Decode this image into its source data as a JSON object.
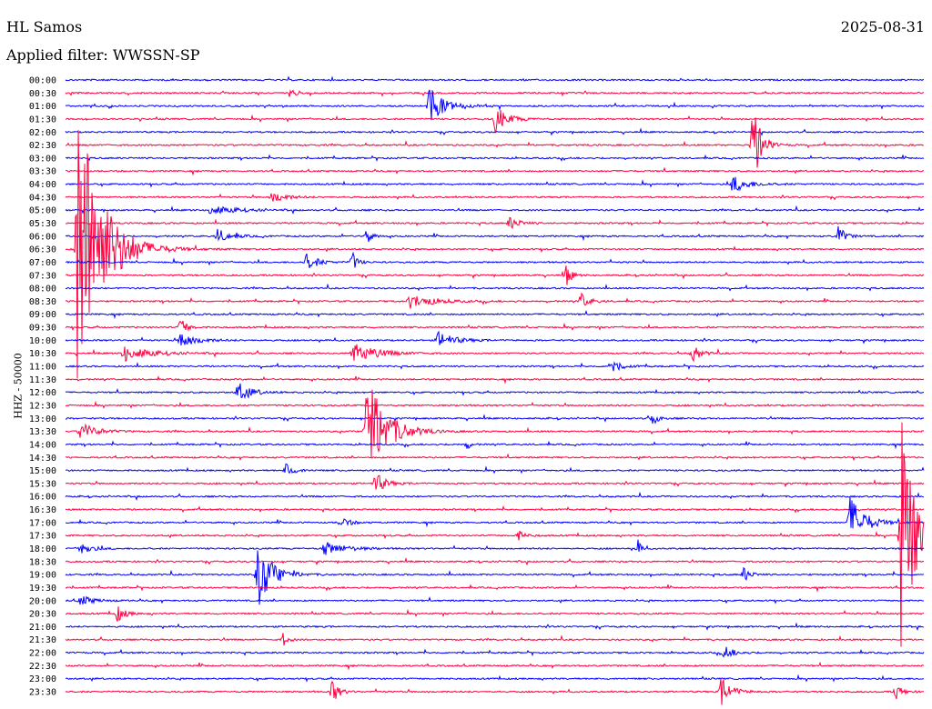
{
  "header": {
    "station": "HL Samos",
    "date": "2025-08-31",
    "filter": "Applied filter: WWSSN-SP"
  },
  "chart_data": {
    "type": "line",
    "title": "HL Samos",
    "subtitle": "Applied filter: WWSSN-SP",
    "ylabel": "HHZ - 50000",
    "xlabel": "",
    "minutes_per_line": 30,
    "colors": [
      "#0000ff",
      "#ff0040"
    ],
    "tick_labels": [
      "00:00",
      "00:30",
      "01:00",
      "01:30",
      "02:00",
      "02:30",
      "03:00",
      "03:30",
      "04:00",
      "04:30",
      "05:00",
      "05:30",
      "06:00",
      "06:30",
      "07:00",
      "07:30",
      "08:00",
      "08:30",
      "09:00",
      "09:30",
      "10:00",
      "10:30",
      "11:00",
      "11:30",
      "12:00",
      "12:30",
      "13:00",
      "13:30",
      "14:00",
      "14:30",
      "15:00",
      "15:30",
      "16:00",
      "16:30",
      "17:00",
      "17:30",
      "18:00",
      "18:30",
      "19:00",
      "19:30",
      "20:00",
      "20:30",
      "21:00",
      "21:30",
      "22:00",
      "22:30",
      "23:00",
      "23:30"
    ],
    "events": [
      {
        "line": "06:30",
        "minute": 0.4,
        "amp": 190,
        "dur": 1.5
      },
      {
        "line": "00:30",
        "minute": 7.8,
        "amp": 5,
        "dur": 0.4
      },
      {
        "line": "01:00",
        "minute": 12.7,
        "amp": 22,
        "dur": 0.9
      },
      {
        "line": "01:30",
        "minute": 15.0,
        "amp": 16,
        "dur": 0.8
      },
      {
        "line": "02:30",
        "minute": 24.0,
        "amp": 55,
        "dur": 0.5
      },
      {
        "line": "04:00",
        "minute": 23.3,
        "amp": 10,
        "dur": 1.0
      },
      {
        "line": "04:30",
        "minute": 7.2,
        "amp": 8,
        "dur": 0.8
      },
      {
        "line": "05:00",
        "minute": 5.0,
        "amp": 6,
        "dur": 1.5
      },
      {
        "line": "05:30",
        "minute": 15.5,
        "amp": 8,
        "dur": 0.6
      },
      {
        "line": "06:00",
        "minute": 5.3,
        "amp": 8,
        "dur": 0.8
      },
      {
        "line": "06:00",
        "minute": 10.5,
        "amp": 12,
        "dur": 0.3
      },
      {
        "line": "06:00",
        "minute": 27.0,
        "amp": 14,
        "dur": 0.4
      },
      {
        "line": "07:00",
        "minute": 8.4,
        "amp": 10,
        "dur": 0.7
      },
      {
        "line": "07:00",
        "minute": 10.0,
        "amp": 14,
        "dur": 0.3
      },
      {
        "line": "07:30",
        "minute": 17.5,
        "amp": 14,
        "dur": 0.3
      },
      {
        "line": "08:30",
        "minute": 12.0,
        "amp": 8,
        "dur": 1.5
      },
      {
        "line": "08:30",
        "minute": 18.0,
        "amp": 10,
        "dur": 0.5
      },
      {
        "line": "09:30",
        "minute": 4.0,
        "amp": 12,
        "dur": 0.4
      },
      {
        "line": "10:00",
        "minute": 4.0,
        "amp": 10,
        "dur": 1.0
      },
      {
        "line": "10:00",
        "minute": 13.0,
        "amp": 10,
        "dur": 1.0
      },
      {
        "line": "10:30",
        "minute": 2.0,
        "amp": 10,
        "dur": 1.5
      },
      {
        "line": "10:30",
        "minute": 10.0,
        "amp": 12,
        "dur": 1.5
      },
      {
        "line": "10:30",
        "minute": 21.9,
        "amp": 10,
        "dur": 0.5
      },
      {
        "line": "11:00",
        "minute": 19.0,
        "amp": 9,
        "dur": 0.6
      },
      {
        "line": "12:00",
        "minute": 6.0,
        "amp": 12,
        "dur": 0.8
      },
      {
        "line": "13:30",
        "minute": 10.5,
        "amp": 70,
        "dur": 1.2
      },
      {
        "line": "13:30",
        "minute": 0.5,
        "amp": 10,
        "dur": 1.0
      },
      {
        "line": "13:00",
        "minute": 20.5,
        "amp": 8,
        "dur": 0.4
      },
      {
        "line": "14:00",
        "minute": 14.0,
        "amp": 10,
        "dur": 0.2
      },
      {
        "line": "15:00",
        "minute": 7.7,
        "amp": 10,
        "dur": 0.5
      },
      {
        "line": "15:30",
        "minute": 10.8,
        "amp": 14,
        "dur": 0.6
      },
      {
        "line": "17:00",
        "minute": 27.4,
        "amp": 32,
        "dur": 0.9
      },
      {
        "line": "17:00",
        "minute": 9.6,
        "amp": 8,
        "dur": 0.5
      },
      {
        "line": "17:30",
        "minute": 29.2,
        "amp": 150,
        "dur": 0.8
      },
      {
        "line": "17:30",
        "minute": 15.8,
        "amp": 6,
        "dur": 0.5
      },
      {
        "line": "18:00",
        "minute": 0.5,
        "amp": 9,
        "dur": 0.6
      },
      {
        "line": "18:00",
        "minute": 9.0,
        "amp": 8,
        "dur": 1.3
      },
      {
        "line": "18:00",
        "minute": 20.0,
        "amp": 10,
        "dur": 0.2
      },
      {
        "line": "19:00",
        "minute": 6.7,
        "amp": 42,
        "dur": 0.9
      },
      {
        "line": "19:00",
        "minute": 23.7,
        "amp": 9,
        "dur": 0.4
      },
      {
        "line": "20:00",
        "minute": 0.5,
        "amp": 6,
        "dur": 0.8
      },
      {
        "line": "20:30",
        "minute": 1.8,
        "amp": 9,
        "dur": 0.5
      },
      {
        "line": "21:30",
        "minute": 7.6,
        "amp": 8,
        "dur": 0.3
      },
      {
        "line": "22:00",
        "minute": 23.0,
        "amp": 8,
        "dur": 0.6
      },
      {
        "line": "23:30",
        "minute": 9.3,
        "amp": 16,
        "dur": 0.4
      },
      {
        "line": "23:30",
        "minute": 22.9,
        "amp": 16,
        "dur": 0.7
      },
      {
        "line": "23:30",
        "minute": 29.0,
        "amp": 10,
        "dur": 0.4
      }
    ]
  }
}
